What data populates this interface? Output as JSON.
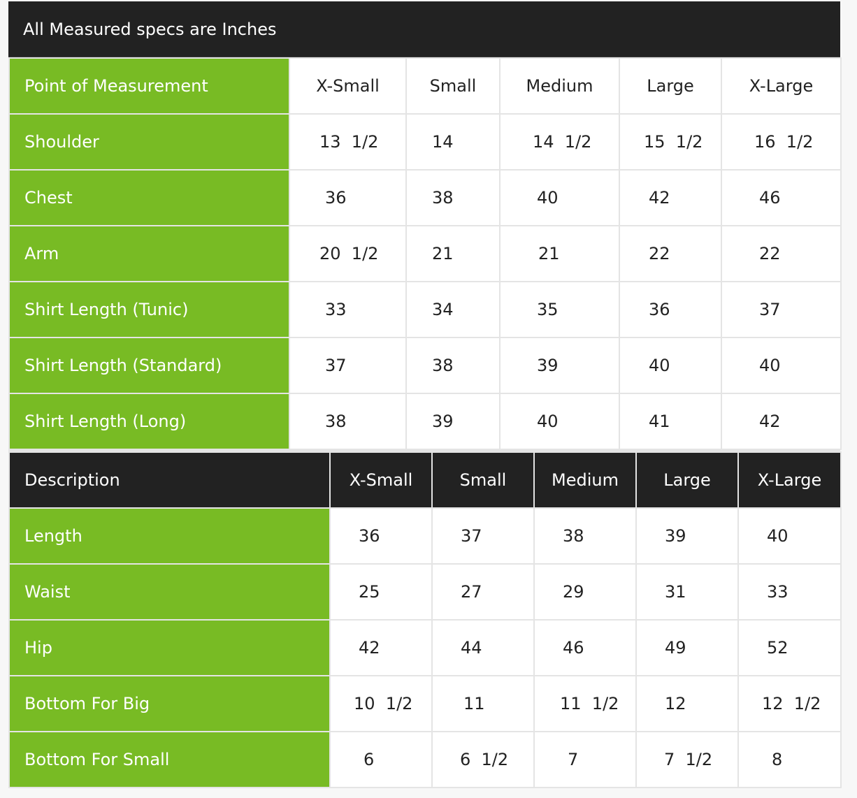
{
  "banner": {
    "text": "All Measured specs are Inches"
  },
  "top_table": {
    "header": {
      "label": "Point of Measurement",
      "sizes": [
        "X-Small",
        "Small",
        "Medium",
        "Large",
        "X-Large"
      ]
    },
    "rows": [
      {
        "label": "Shoulder",
        "values": [
          "13  1/2",
          "14",
          "14  1/2",
          "15  1/2",
          "16  1/2"
        ]
      },
      {
        "label": "Chest",
        "values": [
          "36",
          "38",
          "40",
          "42",
          "46"
        ]
      },
      {
        "label": "Arm",
        "values": [
          "20  1/2",
          "21",
          "21",
          "22",
          "22"
        ]
      },
      {
        "label": "Shirt Length (Tunic)",
        "values": [
          "33",
          "34",
          "35",
          "36",
          "37"
        ]
      },
      {
        "label": "Shirt Length (Standard)",
        "values": [
          "37",
          "38",
          "39",
          "40",
          "40"
        ]
      },
      {
        "label": "Shirt Length (Long)",
        "values": [
          "38",
          "39",
          "40",
          "41",
          "42"
        ]
      }
    ]
  },
  "bottom_table": {
    "header": {
      "label": "Description",
      "sizes": [
        "X-Small",
        "Small",
        "Medium",
        "Large",
        "X-Large"
      ]
    },
    "rows": [
      {
        "label": "Length",
        "values": [
          "36",
          "37",
          "38",
          "39",
          "40"
        ]
      },
      {
        "label": "Waist",
        "values": [
          "25",
          "27",
          "29",
          "31",
          "33"
        ]
      },
      {
        "label": "Hip",
        "values": [
          "42",
          "44",
          "46",
          "49",
          "52"
        ]
      },
      {
        "label": "Bottom For Big",
        "values": [
          "10  1/2",
          "11",
          "11  1/2",
          "12",
          "12  1/2"
        ]
      },
      {
        "label": "Bottom For Small",
        "values": [
          "6",
          "6  1/2",
          "7",
          "7  1/2",
          "8"
        ]
      }
    ]
  },
  "colors": {
    "label_green": "#78bb24",
    "header_dark": "#222222",
    "cell_white": "#ffffff",
    "grid_line": "#e4e4e4"
  }
}
